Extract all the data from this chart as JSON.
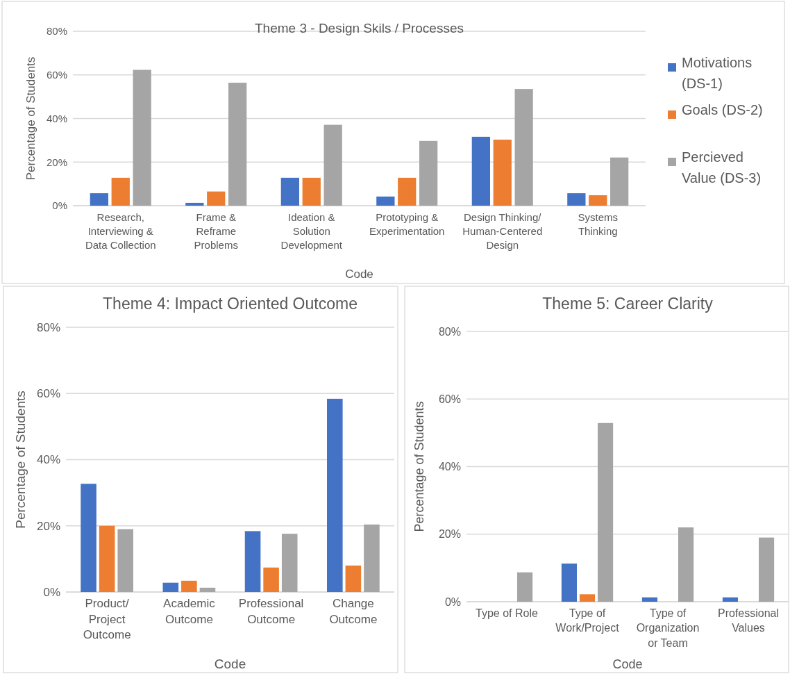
{
  "chart_data": [
    {
      "type": "bar",
      "title": "Theme 3 - Design Skils / Processes",
      "xlabel": "Code",
      "ylabel": "Percentage of Students",
      "categories": [
        "Research, Interviewing & Data Collection",
        "Frame & Reframe Problems",
        "Ideation & Solution Development",
        "Prototyping & Experimentation",
        "Design Thinking/ Human-Centered Design",
        "Systems Thinking"
      ],
      "series": [
        {
          "name": "Motivations (DS-1)",
          "color": "#4472c4",
          "values": [
            5.7,
            1.3,
            12.8,
            4.2,
            31.6,
            5.7
          ]
        },
        {
          "name": "Goals (DS-2)",
          "color": "#ed7d31",
          "values": [
            12.8,
            6.5,
            12.8,
            12.8,
            30.3,
            4.8
          ]
        },
        {
          "name": "Percieved Value (DS-3)",
          "color": "#a5a5a5",
          "values": [
            62.3,
            56.4,
            37.1,
            29.7,
            53.5,
            22.1
          ]
        }
      ],
      "ylim": [
        0,
        80
      ],
      "yticks": [
        {
          "value": 0,
          "label": "0%"
        },
        {
          "value": 20,
          "label": "20%"
        },
        {
          "value": 40,
          "label": "40%"
        },
        {
          "value": 60,
          "label": "60%"
        },
        {
          "value": 80,
          "label": "80%"
        }
      ],
      "grid": "y",
      "legend": "right"
    },
    {
      "type": "bar",
      "title": "Theme 4:  Impact Oriented Outcome",
      "xlabel": "Code",
      "ylabel": "Percentage of Students",
      "categories": [
        "Product/ Project Outcome",
        "Academic Outcome",
        "Professional Outcome",
        "Change Outcome"
      ],
      "series": [
        {
          "color": "#4472c4",
          "values": [
            32.7,
            2.8,
            18.4,
            58.4
          ]
        },
        {
          "color": "#ed7d31",
          "values": [
            20,
            3.4,
            7.4,
            8
          ]
        },
        {
          "color": "#a5a5a5",
          "values": [
            19,
            1.3,
            17.6,
            20.4
          ]
        }
      ],
      "ylim": [
        0,
        80
      ],
      "yticks": [
        {
          "value": 0,
          "label": "0%"
        },
        {
          "value": 20,
          "label": "20%"
        },
        {
          "value": 40,
          "label": "40%"
        },
        {
          "value": 60,
          "label": "60%"
        },
        {
          "value": 80,
          "label": "80%"
        }
      ],
      "grid": "y"
    },
    {
      "type": "bar",
      "title": "Theme 5: Career Clarity",
      "xlabel": "Code",
      "ylabel": "Percentage of Students",
      "categories": [
        "Type of Role",
        "Type of Work/Project",
        "Type of Organization or Team",
        "Professional Values"
      ],
      "series": [
        {
          "color": "#4472c4",
          "values": [
            0,
            11.3,
            1.3,
            1.3
          ]
        },
        {
          "color": "#ed7d31",
          "values": [
            0,
            2.2,
            0,
            0
          ]
        },
        {
          "color": "#a5a5a5",
          "values": [
            8.7,
            52.9,
            22,
            19
          ]
        }
      ],
      "ylim": [
        0,
        80
      ],
      "yticks": [
        {
          "value": 0,
          "label": "0%"
        },
        {
          "value": 20,
          "label": "20%"
        },
        {
          "value": 40,
          "label": "40%"
        },
        {
          "value": 60,
          "label": "60%"
        },
        {
          "value": 80,
          "label": "80%"
        }
      ],
      "grid": "y"
    }
  ]
}
